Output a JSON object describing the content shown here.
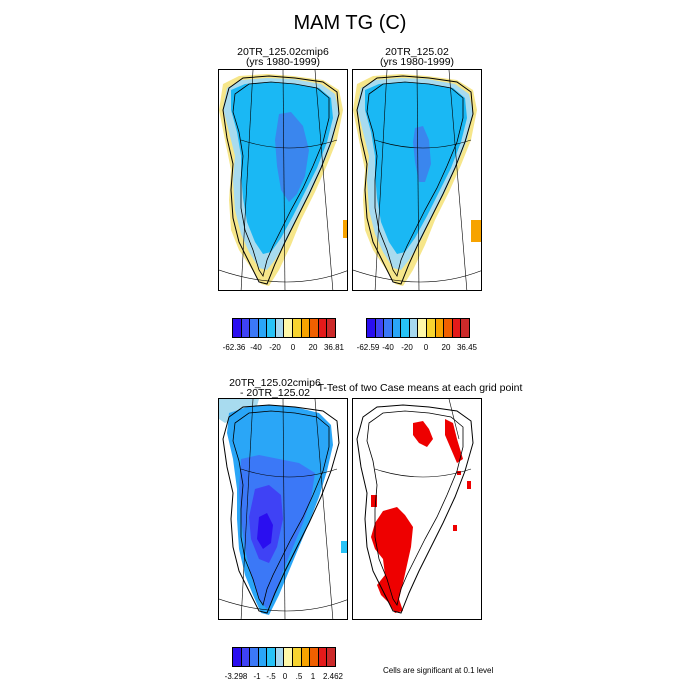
{
  "figure": {
    "title": "MAM TG (C)",
    "panels": [
      {
        "title_line1": "20TR_125.02cmip6",
        "title_line2": "(yrs 1980-1999)"
      },
      {
        "title_line1": "20TR_125.02",
        "title_line2": "(yrs 1980-1999)"
      },
      {
        "title_line1": "20TR_125.02cmip6",
        "title_line2": "- 20TR_125.02"
      },
      {
        "title_line1": "T-Test of two Case means at each grid point",
        "title_line2": ""
      }
    ],
    "significance_note": "Cells are significant at 0.1 level"
  },
  "chart_data": [
    {
      "type": "heatmap",
      "title": "20TR_125.02cmip6 (yrs 1980-1999)",
      "colorbar": {
        "min_label": "-62.36",
        "max_label": "36.81",
        "tick_labels": [
          "-62.36",
          "-40",
          "-20",
          "0",
          "20",
          "36.81"
        ],
        "colors": [
          "#2a0ef0",
          "#3f42f5",
          "#3b78f7",
          "#2aa6f7",
          "#27c3f7",
          "#a6d8ef",
          "#fff8a8",
          "#f7d430",
          "#f7a300",
          "#f06000",
          "#e41a1a",
          "#cc2a2a"
        ]
      }
    },
    {
      "type": "heatmap",
      "title": "20TR_125.02 (yrs 1980-1999)",
      "colorbar": {
        "min_label": "-62.59",
        "max_label": "36.45",
        "tick_labels": [
          "-62.59",
          "-40",
          "-20",
          "0",
          "20",
          "36.45"
        ],
        "colors": [
          "#2a0ef0",
          "#3f42f5",
          "#3b78f7",
          "#2aa6f7",
          "#27c3f7",
          "#a6d8ef",
          "#fff8a8",
          "#f7d430",
          "#f7a300",
          "#f06000",
          "#e41a1a",
          "#cc2a2a"
        ]
      }
    },
    {
      "type": "heatmap",
      "title": "20TR_125.02cmip6 - 20TR_125.02",
      "colorbar": {
        "min_label": "-3.298",
        "max_label": "2.462",
        "tick_labels": [
          "-3.298",
          "-1",
          "-.5",
          "0",
          ".5",
          "1",
          "2.462"
        ],
        "colors": [
          "#2a0ef0",
          "#3f42f5",
          "#3b78f7",
          "#2aa6f7",
          "#27c3f7",
          "#a6d8ef",
          "#fff8a8",
          "#f7d430",
          "#f7a300",
          "#f06000",
          "#e41a1a",
          "#cc2a2a"
        ]
      }
    },
    {
      "type": "heatmap",
      "title": "T-Test of two Case means at each grid point",
      "significant_color": "#ee0000"
    }
  ]
}
